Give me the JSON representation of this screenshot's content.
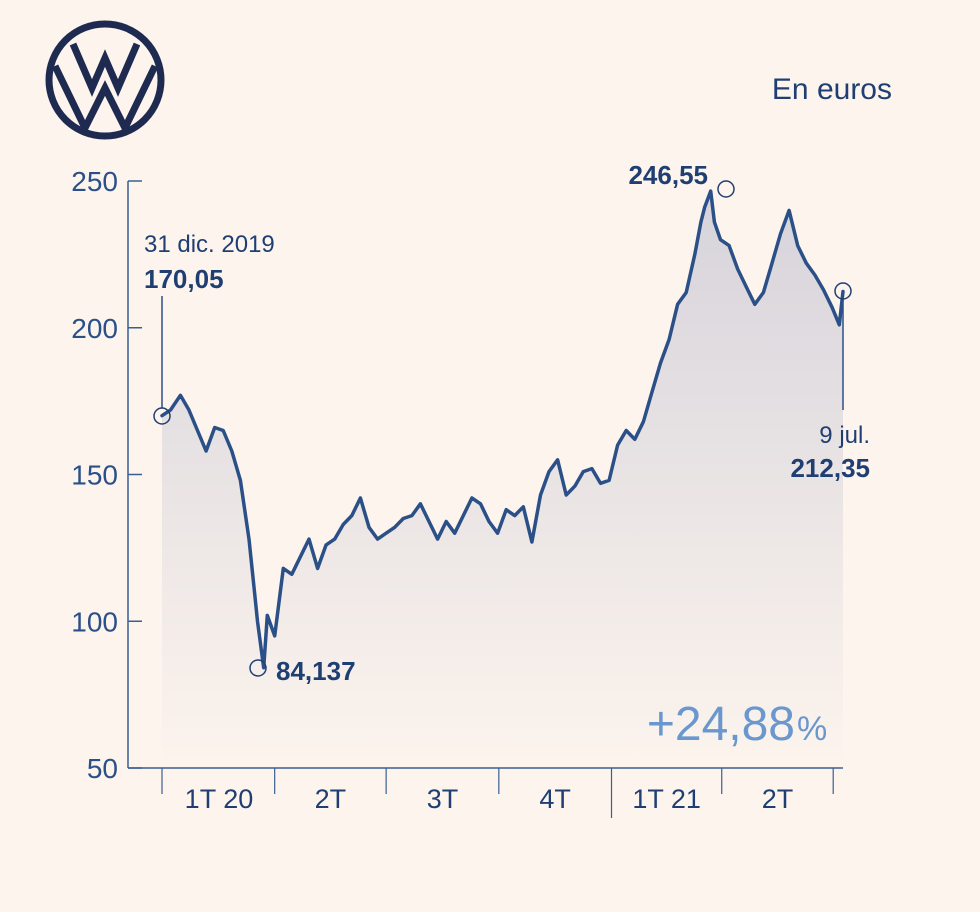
{
  "unit_label": "En euros",
  "logo": {
    "icon": "vw-logo-icon"
  },
  "change": {
    "value": "+24,88",
    "sign": "%"
  },
  "colors": {
    "line": "#2b5088",
    "text": "#1f3f72",
    "accent": "#6b97cf",
    "background": "#fcf4ed"
  },
  "annotations": {
    "start_date": "31 dic. 2019",
    "start_value": "170,05",
    "min_value": "84,137",
    "max_value": "246,55",
    "end_date": "9 jul.",
    "end_value": "212,35"
  },
  "chart_data": {
    "type": "area",
    "ylim": [
      50,
      250
    ],
    "y_ticks": [
      "250",
      "200",
      "150",
      "100",
      "50"
    ],
    "x_domain": [
      "2019-12-31",
      "2021-07-09"
    ],
    "x_tick_labels": [
      "1T 20",
      "2T",
      "3T",
      "4T",
      "1T 21",
      "2T"
    ],
    "grid": false,
    "series": [
      {
        "x": [
          "2019-12-31",
          "2020-01-07",
          "2020-01-15",
          "2020-01-22",
          "2020-01-29",
          "2020-02-05",
          "2020-02-12",
          "2020-02-19",
          "2020-02-26",
          "2020-03-04",
          "2020-03-11",
          "2020-03-16",
          "2020-03-18",
          "2020-03-23",
          "2020-03-26",
          "2020-04-01",
          "2020-04-08",
          "2020-04-15",
          "2020-04-22",
          "2020-04-29",
          "2020-05-06",
          "2020-05-13",
          "2020-05-20",
          "2020-05-27",
          "2020-06-03",
          "2020-06-10",
          "2020-06-17",
          "2020-06-24",
          "2020-07-01",
          "2020-07-08",
          "2020-07-15",
          "2020-07-22",
          "2020-07-29",
          "2020-08-05",
          "2020-08-12",
          "2020-08-19",
          "2020-08-26",
          "2020-09-02",
          "2020-09-09",
          "2020-09-16",
          "2020-09-23",
          "2020-09-30",
          "2020-10-07",
          "2020-10-14",
          "2020-10-21",
          "2020-10-28",
          "2020-11-04",
          "2020-11-11",
          "2020-11-18",
          "2020-11-25",
          "2020-12-02",
          "2020-12-09",
          "2020-12-16",
          "2020-12-23",
          "2020-12-30",
          "2021-01-06",
          "2021-01-13",
          "2021-01-20",
          "2021-01-27",
          "2021-02-03",
          "2021-02-10",
          "2021-02-17",
          "2021-02-24",
          "2021-03-03",
          "2021-03-10",
          "2021-03-15",
          "2021-03-18",
          "2021-03-23",
          "2021-03-26",
          "2021-03-31",
          "2021-04-07",
          "2021-04-14",
          "2021-04-21",
          "2021-04-28",
          "2021-05-05",
          "2021-05-12",
          "2021-05-19",
          "2021-05-26",
          "2021-06-02",
          "2021-06-09",
          "2021-06-16",
          "2021-06-23",
          "2021-06-30",
          "2021-07-06",
          "2021-07-09"
        ],
        "values": [
          170.05,
          172,
          177,
          172,
          165,
          158,
          166,
          165,
          158,
          148,
          128,
          108,
          100,
          84.137,
          102,
          95,
          118,
          116,
          122,
          128,
          118,
          126,
          128,
          133,
          136,
          142,
          132,
          128,
          130,
          132,
          135,
          136,
          140,
          134,
          128,
          134,
          130,
          136,
          142,
          140,
          134,
          130,
          138,
          136,
          139,
          127,
          143,
          151,
          155,
          143,
          146,
          151,
          152,
          147,
          148,
          160,
          165,
          162,
          168,
          178,
          188,
          196,
          208,
          212,
          225,
          236,
          241,
          246.55,
          236,
          230,
          228,
          220,
          214,
          208,
          212,
          222,
          232,
          240,
          228,
          222,
          218,
          213,
          207,
          201,
          212.35
        ]
      }
    ]
  }
}
